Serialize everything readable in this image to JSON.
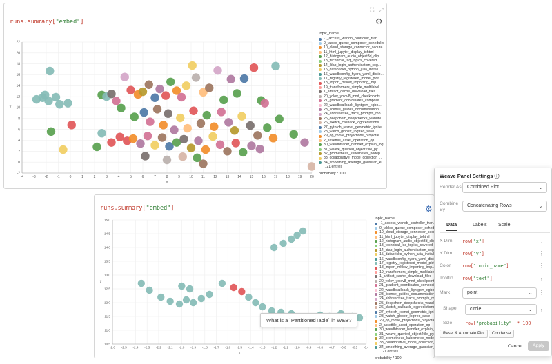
{
  "panel1": {
    "expr_prefix": "runs.summary[",
    "expr_key": "\"embed\"",
    "expr_suffix": "]",
    "legend_title": "topic_name",
    "legend_items": [
      {
        "label": "-1_access_wandb_controller_tran...",
        "color": "#4e79a7"
      },
      {
        "label": "0_tables_queue_composer_scheduler",
        "color": "#a0cbe8"
      },
      {
        "label": "10_cloud_storage_connector_secure",
        "color": "#f28e2b"
      },
      {
        "label": "11_html_jupyter_display_tohtml",
        "color": "#ffbe7d"
      },
      {
        "label": "12_histogram_audio_object3d_clip",
        "color": "#59a14f"
      },
      {
        "label": "13_technical_faq_topics_covered",
        "color": "#8cd17d"
      },
      {
        "label": "14_ldap_login_authentication_cog...",
        "color": "#b6992d"
      },
      {
        "label": "15_databricks_python_julia_install",
        "color": "#f1ce63"
      },
      {
        "label": "16_wandbconfig_hydra_yaml_dictio...",
        "color": "#499894"
      },
      {
        "label": "17_registry_registered_model_plot",
        "color": "#86bcb6"
      },
      {
        "label": "18_import_mlflow_importing_imp...",
        "color": "#e15759"
      },
      {
        "label": "19_transformers_simple_multilabel...",
        "color": "#ff9d9a"
      },
      {
        "label": "1_artifact_cache_download_files",
        "color": "#79706e"
      },
      {
        "label": "20_yolov_yolov8_mmf_checkpoints",
        "color": "#bab0ac"
      },
      {
        "label": "21_gradient_coordinates_composit...",
        "color": "#d37295"
      },
      {
        "label": "22_wandbcallback_lightgbm_xgbo...",
        "color": "#fabfd2"
      },
      {
        "label": "23_license_guides_documentation...",
        "color": "#b07aa1"
      },
      {
        "label": "24_abbreactree_trace_prompts_mo...",
        "color": "#d4a6c8"
      },
      {
        "label": "25_deepchem_deepchecks_wandbl...",
        "color": "#9d7660"
      },
      {
        "label": "26_sketch_callback_logpredictions...",
        "color": "#d7b5a6"
      },
      {
        "label": "27_pytorch_resnet_geometric_ignite",
        "color": "#4e79a7"
      },
      {
        "label": "28_watch_globstr_logfreq_save",
        "color": "#a0cbe8"
      },
      {
        "label": "29_op_move_projections_projectar...",
        "color": "#f28e2b"
      },
      {
        "label": "2_assetfile_asset_operation_op",
        "color": "#ffbe7d"
      },
      {
        "label": "30_wandbtracer_handler_explain_log",
        "color": "#59a14f"
      },
      {
        "label": "31_weave_queried_object2file_py...",
        "color": "#8cd17d"
      },
      {
        "label": "32_prometheus_kubernetes_nodep...",
        "color": "#b6992d"
      },
      {
        "label": "33_collaborative_mode_collection_...",
        "color": "#f1ce63"
      },
      {
        "label": "34_smoothing_average_gaussian_e...",
        "color": "#499894"
      },
      {
        "label": "...21 entries",
        "color": "#ffffff"
      }
    ],
    "legend_footer": "probability * 100",
    "xlabel": "x",
    "ylabel": "y"
  },
  "panel2": {
    "expr_prefix": "runs.summary[",
    "expr_key": "\"embed\"",
    "expr_suffix": "]",
    "legend_title": "topic_name",
    "legend_footer": "probability * 100",
    "tooltip": "What is a `PartitionedTable` in W&B?",
    "xlabel": "x",
    "ylabel": "y"
  },
  "settings": {
    "title": "Weave Panel Settings",
    "render_as_label": "Render As",
    "render_as_value": "Combined Plot",
    "combine_by_label": "Combine By",
    "combine_by_value": "Concatenating Rows",
    "tabs": [
      "Data",
      "Labels",
      "Scale"
    ],
    "active_tab": "Data",
    "dims": [
      {
        "label": "X Dim",
        "key": "\"x\""
      },
      {
        "label": "Y Dim",
        "key": "\"y\""
      },
      {
        "label": "Color",
        "key": "\"topic_name\""
      },
      {
        "label": "Tooltip",
        "key": "\"text\""
      }
    ],
    "dim_prefix": "row[",
    "dim_suffix": "]",
    "mark_label": "Mark",
    "mark_value": "point",
    "shape_label": "Shape",
    "shape_value": "circle",
    "size_label": "Size",
    "size_prefix": "row[",
    "size_key": "\"probability\"",
    "size_suffix": "] * 100",
    "reset_label": "Reset & Automate Plot",
    "condense_label": "Condense",
    "cancel_label": "Cancel",
    "apply_label": "Apply"
  },
  "chart_data": [
    {
      "type": "scatter",
      "xlabel": "x",
      "ylabel": "y",
      "xlim": [
        -4,
        20
      ],
      "ylim": [
        -2,
        22
      ],
      "xticks": [
        -4,
        -3,
        -2,
        -1,
        0,
        1,
        2,
        3,
        4,
        5,
        6,
        7,
        8,
        9,
        10,
        11,
        12,
        13,
        14,
        15,
        16,
        17,
        18,
        19,
        20
      ],
      "yticks": [
        -2,
        0,
        2,
        4,
        6,
        8,
        10,
        12,
        14,
        16,
        18,
        20,
        22
      ],
      "grid": true,
      "legend": "right",
      "points": [
        {
          "x": -2.8,
          "y": 11.5,
          "c": 9
        },
        {
          "x": -2.3,
          "y": 11.8,
          "c": 9
        },
        {
          "x": -1.8,
          "y": 11.2,
          "c": 9
        },
        {
          "x": -1.2,
          "y": 11.9,
          "c": 9
        },
        {
          "x": -0.9,
          "y": 10.6,
          "c": 9
        },
        {
          "x": -0.2,
          "y": 10.8,
          "c": 9
        },
        {
          "x": -1.7,
          "y": 16.7,
          "c": 9
        },
        {
          "x": -2.1,
          "y": 12.3,
          "c": 9
        },
        {
          "x": 0.1,
          "y": 6.8,
          "c": 10
        },
        {
          "x": -1.6,
          "y": 5.6,
          "c": 4
        },
        {
          "x": -0.6,
          "y": 2.3,
          "c": 7
        },
        {
          "x": 2.6,
          "y": 12.3,
          "c": 4
        },
        {
          "x": 3.0,
          "y": 12.0,
          "c": 9
        },
        {
          "x": 3.4,
          "y": 12.5,
          "c": 12
        },
        {
          "x": 3.8,
          "y": 11.2,
          "c": 14
        },
        {
          "x": 4.5,
          "y": 15.6,
          "c": 17
        },
        {
          "x": 4.2,
          "y": 9.9,
          "c": 4
        },
        {
          "x": 5.0,
          "y": 13.2,
          "c": 10
        },
        {
          "x": 5.6,
          "y": 12.4,
          "c": 2
        },
        {
          "x": 6.0,
          "y": 12.9,
          "c": 6
        },
        {
          "x": 6.5,
          "y": 14.2,
          "c": 18
        },
        {
          "x": 7.0,
          "y": 11.8,
          "c": 0
        },
        {
          "x": 7.4,
          "y": 13.4,
          "c": 16
        },
        {
          "x": 7.9,
          "y": 12.2,
          "c": 10
        },
        {
          "x": 8.3,
          "y": 14.7,
          "c": 4
        },
        {
          "x": 8.8,
          "y": 13.1,
          "c": 2
        },
        {
          "x": 9.2,
          "y": 11.9,
          "c": 14
        },
        {
          "x": 9.6,
          "y": 14.0,
          "c": 7
        },
        {
          "x": 10.1,
          "y": 17.7,
          "c": 7
        },
        {
          "x": 10.4,
          "y": 15.5,
          "c": 13
        },
        {
          "x": 11.0,
          "y": 12.8,
          "c": 3
        },
        {
          "x": 11.5,
          "y": 13.6,
          "c": 18
        },
        {
          "x": 12.2,
          "y": 16.8,
          "c": 17
        },
        {
          "x": 12.7,
          "y": 11.4,
          "c": 4
        },
        {
          "x": 13.3,
          "y": 15.2,
          "c": 16
        },
        {
          "x": 13.8,
          "y": 12.6,
          "c": 4
        },
        {
          "x": 14.4,
          "y": 15.3,
          "c": 20
        },
        {
          "x": 15.2,
          "y": 17.3,
          "c": 10
        },
        {
          "x": 15.8,
          "y": 11.3,
          "c": 4
        },
        {
          "x": 16.1,
          "y": 10.8,
          "c": 14
        },
        {
          "x": 17.0,
          "y": 17.6,
          "c": 9
        },
        {
          "x": 17.3,
          "y": 7.9,
          "c": 4
        },
        {
          "x": 18.5,
          "y": 5.1,
          "c": 4
        },
        {
          "x": 19.4,
          "y": 3.6,
          "c": 16
        },
        {
          "x": 20.0,
          "y": -0.8,
          "c": 19
        },
        {
          "x": 5.3,
          "y": 8.3,
          "c": 4
        },
        {
          "x": 6.1,
          "y": 9.1,
          "c": 0
        },
        {
          "x": 6.6,
          "y": 7.4,
          "c": 14
        },
        {
          "x": 7.2,
          "y": 9.7,
          "c": 18
        },
        {
          "x": 7.7,
          "y": 6.8,
          "c": 2
        },
        {
          "x": 8.1,
          "y": 8.9,
          "c": 12
        },
        {
          "x": 8.6,
          "y": 5.9,
          "c": 16
        },
        {
          "x": 9.1,
          "y": 8.1,
          "c": 7
        },
        {
          "x": 9.7,
          "y": 6.2,
          "c": 3
        },
        {
          "x": 10.2,
          "y": 9.4,
          "c": 10
        },
        {
          "x": 10.8,
          "y": 7.1,
          "c": 18
        },
        {
          "x": 11.3,
          "y": 8.6,
          "c": 4
        },
        {
          "x": 11.9,
          "y": 6.5,
          "c": 2
        },
        {
          "x": 12.5,
          "y": 9.2,
          "c": 14
        },
        {
          "x": 13.1,
          "y": 7.3,
          "c": 16
        },
        {
          "x": 13.6,
          "y": 5.8,
          "c": 6
        },
        {
          "x": 14.2,
          "y": 8.4,
          "c": 7
        },
        {
          "x": 14.9,
          "y": 6.7,
          "c": 12
        },
        {
          "x": 15.5,
          "y": 4.9,
          "c": 18
        },
        {
          "x": 16.3,
          "y": 6.3,
          "c": 4
        },
        {
          "x": 16.8,
          "y": 4.4,
          "c": 2
        },
        {
          "x": 4.1,
          "y": 4.6,
          "c": 10
        },
        {
          "x": 4.7,
          "y": 3.9,
          "c": 10
        },
        {
          "x": 5.2,
          "y": 4.3,
          "c": 2
        },
        {
          "x": 5.8,
          "y": 3.4,
          "c": 16
        },
        {
          "x": 6.4,
          "y": 4.8,
          "c": 14
        },
        {
          "x": 7.0,
          "y": 3.1,
          "c": 7
        },
        {
          "x": 7.6,
          "y": 4.5,
          "c": 18
        },
        {
          "x": 8.2,
          "y": 2.9,
          "c": 0
        },
        {
          "x": 8.8,
          "y": 3.6,
          "c": 4
        },
        {
          "x": 9.4,
          "y": 4.2,
          "c": 12
        },
        {
          "x": 10.0,
          "y": 2.6,
          "c": 6
        },
        {
          "x": 10.6,
          "y": 3.9,
          "c": 16
        },
        {
          "x": 11.2,
          "y": 2.3,
          "c": 2
        },
        {
          "x": 11.8,
          "y": 4.7,
          "c": 7
        },
        {
          "x": 12.4,
          "y": 3.2,
          "c": 14
        },
        {
          "x": 13.0,
          "y": 2.0,
          "c": 18
        },
        {
          "x": 13.7,
          "y": 3.5,
          "c": 10
        },
        {
          "x": 14.3,
          "y": 1.8,
          "c": 4
        },
        {
          "x": 15.0,
          "y": 3.0,
          "c": 16
        },
        {
          "x": 15.7,
          "y": 2.4,
          "c": 16
        },
        {
          "x": 6.2,
          "y": 1.1,
          "c": 12
        },
        {
          "x": 8.0,
          "y": 0.4,
          "c": 13
        },
        {
          "x": 9.3,
          "y": 1.0,
          "c": 19
        },
        {
          "x": 11.0,
          "y": -0.3,
          "c": 18
        },
        {
          "x": 10.5,
          "y": 0.8,
          "c": 4
        },
        {
          "x": 2.6,
          "y": 5.3,
          "c": 9
        },
        {
          "x": 3.4,
          "y": 3.6,
          "c": 10
        },
        {
          "x": 2.2,
          "y": 2.8,
          "c": 4
        }
      ]
    },
    {
      "type": "scatter",
      "xlabel": "x",
      "ylabel": "y",
      "xlim": [
        -2.6,
        -0.4
      ],
      "ylim": [
        10.5,
        15.0
      ],
      "xticks": [
        -2.6,
        -2.5,
        -2.4,
        -2.3,
        -2.2,
        -2.1,
        -2.0,
        -1.9,
        -1.8,
        -1.7,
        -1.6,
        -1.5,
        -1.4,
        -1.3,
        -1.2,
        -1.1,
        -1.0,
        -0.9,
        -0.8,
        -0.7,
        -0.6,
        -0.5,
        -0.4
      ],
      "yticks": [
        10.5,
        11.0,
        11.5,
        12.0,
        12.5,
        13.0,
        13.5,
        14.0,
        14.5,
        15.0
      ],
      "grid": true,
      "legend": "right",
      "points": [
        {
          "x": -2.35,
          "y": 12.7,
          "c": 9
        },
        {
          "x": -2.28,
          "y": 12.45,
          "c": 9
        },
        {
          "x": -2.18,
          "y": 12.2,
          "c": 9
        },
        {
          "x": -2.1,
          "y": 12.05,
          "c": 9
        },
        {
          "x": -2.02,
          "y": 11.95,
          "c": 9
        },
        {
          "x": -1.96,
          "y": 12.1,
          "c": 9
        },
        {
          "x": -1.9,
          "y": 12.0,
          "c": 9
        },
        {
          "x": -1.83,
          "y": 12.15,
          "c": 9
        },
        {
          "x": -1.76,
          "y": 12.3,
          "c": 9
        },
        {
          "x": -2.0,
          "y": 12.6,
          "c": 9
        },
        {
          "x": -1.93,
          "y": 12.5,
          "c": 9
        },
        {
          "x": -1.65,
          "y": 12.7,
          "c": 9
        },
        {
          "x": -1.55,
          "y": 12.55,
          "c": 10
        },
        {
          "x": -1.48,
          "y": 12.4,
          "c": 10
        },
        {
          "x": -1.42,
          "y": 12.2,
          "c": 9
        },
        {
          "x": -1.36,
          "y": 12.0,
          "c": 9
        },
        {
          "x": -1.3,
          "y": 11.85,
          "c": 9
        },
        {
          "x": -1.22,
          "y": 11.7,
          "c": 9
        },
        {
          "x": -1.14,
          "y": 11.65,
          "c": 9
        },
        {
          "x": -1.05,
          "y": 11.6,
          "c": 9
        },
        {
          "x": -1.2,
          "y": 14.0,
          "c": 9
        },
        {
          "x": -1.12,
          "y": 14.15,
          "c": 9
        },
        {
          "x": -1.05,
          "y": 14.3,
          "c": 9
        },
        {
          "x": -1.0,
          "y": 14.45,
          "c": 9
        },
        {
          "x": -0.95,
          "y": 14.6,
          "c": 9
        },
        {
          "x": -0.8,
          "y": 11.55,
          "c": 9
        },
        {
          "x": -0.72,
          "y": 11.5,
          "c": 9
        },
        {
          "x": -0.62,
          "y": 11.6,
          "c": 9
        },
        {
          "x": -0.52,
          "y": 11.5,
          "c": 9
        },
        {
          "x": -0.46,
          "y": 11.45,
          "c": 9
        }
      ]
    }
  ]
}
